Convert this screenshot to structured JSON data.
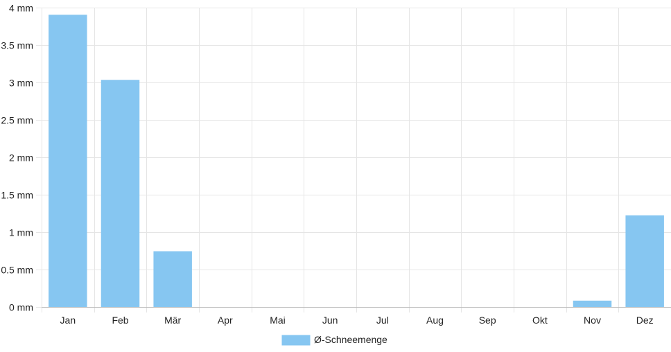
{
  "chart_data": {
    "type": "bar",
    "categories": [
      "Jan",
      "Feb",
      "Mär",
      "Apr",
      "Mai",
      "Jun",
      "Jul",
      "Aug",
      "Sep",
      "Okt",
      "Nov",
      "Dez"
    ],
    "series": [
      {
        "name": "Ø-Schneemenge",
        "values": [
          3.9,
          3.03,
          0.74,
          0,
          0,
          0,
          0,
          0,
          0,
          0,
          0.08,
          1.22
        ]
      }
    ],
    "ylim": [
      0,
      4
    ],
    "yticks": [
      0,
      0.5,
      1,
      1.5,
      2,
      2.5,
      3,
      3.5,
      4
    ],
    "ytick_labels": [
      "0 mm",
      "0.5 mm",
      "1 mm",
      "1.5 mm",
      "2 mm",
      "2.5 mm",
      "3 mm",
      "3.5 mm",
      "4 mm"
    ],
    "grid": true,
    "legend_position": "bottom",
    "colors": {
      "bar_fill": "#86c6f1",
      "bar_stroke": "#86c6f1",
      "grid": "#e5e5e5",
      "axis": "#bdbdbd"
    }
  }
}
